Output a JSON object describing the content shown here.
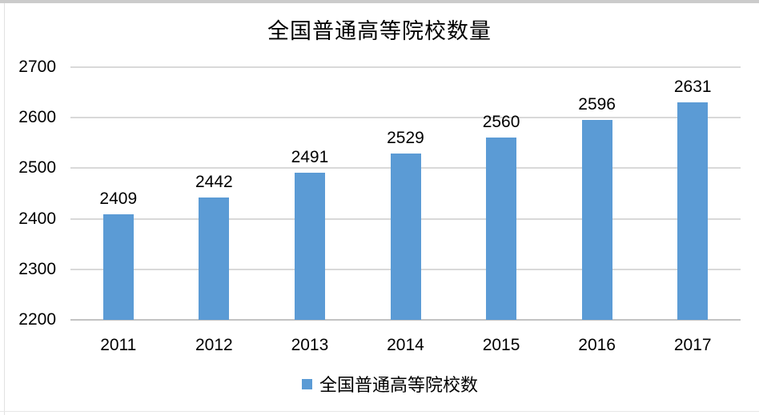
{
  "chart_data": {
    "type": "bar",
    "title": "全国普通高等院校数量",
    "categories": [
      "2011",
      "2012",
      "2013",
      "2014",
      "2015",
      "2016",
      "2017"
    ],
    "values": [
      2409,
      2442,
      2491,
      2529,
      2560,
      2596,
      2631
    ],
    "series_name": "全国普通高等院校数",
    "series_color": "#5B9BD5",
    "xlabel": "",
    "ylabel": "",
    "ylim": [
      2200,
      2700
    ],
    "yticks": [
      2200,
      2300,
      2400,
      2500,
      2600,
      2700
    ],
    "grid": true,
    "data_labels": true,
    "legend_position": "bottom",
    "gridline_color": "#D9D9D9",
    "axis_line_color": "#C3C3C3",
    "label_color": "#000000",
    "background_color": "#FFFFFF"
  }
}
